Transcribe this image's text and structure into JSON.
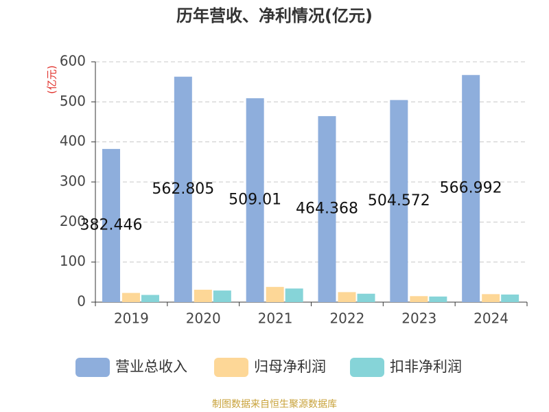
{
  "chart_data": {
    "type": "bar",
    "title": "历年营收、净利情况(亿元)",
    "y_axis_label": "(亿元)",
    "categories": [
      "2019",
      "2020",
      "2021",
      "2022",
      "2023",
      "2024"
    ],
    "series": [
      {
        "name": "营业总收入",
        "color": "#8eaedc",
        "values": [
          382.446,
          562.805,
          509.01,
          464.368,
          504.572,
          566.992
        ],
        "show_labels": true
      },
      {
        "name": "归母净利润",
        "color": "#fdd797",
        "values": [
          23,
          31,
          38,
          25,
          15,
          20
        ]
      },
      {
        "name": "扣非净利润",
        "color": "#86d4d8",
        "values": [
          18,
          29,
          34,
          21,
          14,
          19
        ]
      }
    ],
    "ylim": [
      0,
      600
    ],
    "yticks": [
      0,
      100,
      200,
      300,
      400,
      500,
      600
    ],
    "grid": true,
    "source": "制图数据来自恒生聚源数据库"
  }
}
